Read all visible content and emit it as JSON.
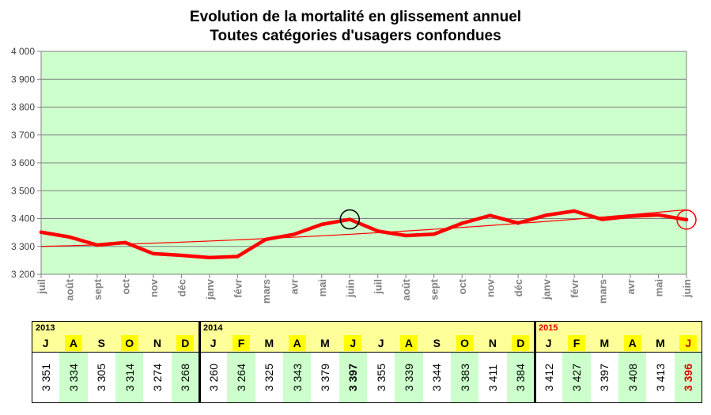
{
  "title_lines": [
    "Evolution de la mortalité en glissement annuel",
    "Toutes catégories d'usagers confondues"
  ],
  "chart_data": {
    "type": "line",
    "title": "Evolution de la mortalité en glissement annuel — Toutes catégories d'usagers confondues",
    "categories": [
      "juil",
      "août",
      "sept",
      "oct",
      "nov",
      "déc",
      "janv",
      "févr",
      "mars",
      "avr",
      "mai",
      "juin",
      "juil",
      "août",
      "sept",
      "oct",
      "nov",
      "déc",
      "janv",
      "févr",
      "mars",
      "avr",
      "mai",
      "juin"
    ],
    "series": [
      {
        "values": [
          3351,
          3334,
          3305,
          3314,
          3274,
          3268,
          3260,
          3264,
          3325,
          3343,
          3379,
          3397,
          3355,
          3339,
          3344,
          3383,
          3411,
          3384,
          3412,
          3427,
          3397,
          3408,
          3413,
          3396
        ],
        "color": "#ff0000"
      }
    ],
    "trendline": true,
    "ylim": [
      3200,
      4000
    ],
    "yticks": [
      3200,
      3300,
      3400,
      3500,
      3600,
      3700,
      3800,
      3900,
      4000
    ],
    "ytick_labels": [
      "3 200",
      "3 300",
      "3 400",
      "3 500",
      "3 600",
      "3 700",
      "3 800",
      "3 900",
      "4 000"
    ],
    "grid": true,
    "plot_background": "#ccffcc",
    "highlighted_points": [
      {
        "index": 11,
        "circle_color": "#000000"
      },
      {
        "index": 23,
        "circle_color": "#ff0000"
      }
    ]
  },
  "table": {
    "years": [
      {
        "year": "2013",
        "color": "#000000",
        "months": [
          {
            "letter": "J",
            "value": "3 351",
            "hl": false
          },
          {
            "letter": "A",
            "value": "3 334",
            "hl": true
          },
          {
            "letter": "S",
            "value": "3 305",
            "hl": false
          },
          {
            "letter": "O",
            "value": "3 314",
            "hl": true
          },
          {
            "letter": "N",
            "value": "3 274",
            "hl": false
          },
          {
            "letter": "D",
            "value": "3 268",
            "hl": true
          }
        ]
      },
      {
        "year": "2014",
        "color": "#000000",
        "months": [
          {
            "letter": "J",
            "value": "3 260",
            "hl": false
          },
          {
            "letter": "F",
            "value": "3 264",
            "hl": true
          },
          {
            "letter": "M",
            "value": "3 325",
            "hl": false
          },
          {
            "letter": "A",
            "value": "3 343",
            "hl": true
          },
          {
            "letter": "M",
            "value": "3 379",
            "hl": false
          },
          {
            "letter": "J",
            "value": "3 397",
            "hl": true,
            "bold": true
          },
          {
            "letter": "J",
            "value": "3 355",
            "hl": false
          },
          {
            "letter": "A",
            "value": "3 339",
            "hl": true
          },
          {
            "letter": "S",
            "value": "3 344",
            "hl": false
          },
          {
            "letter": "O",
            "value": "3 383",
            "hl": true
          },
          {
            "letter": "N",
            "value": "3 411",
            "hl": false
          },
          {
            "letter": "D",
            "value": "3 384",
            "hl": true
          }
        ]
      },
      {
        "year": "2015",
        "color": "#e00000",
        "months": [
          {
            "letter": "J",
            "value": "3 412",
            "hl": false
          },
          {
            "letter": "F",
            "value": "3 427",
            "hl": true
          },
          {
            "letter": "M",
            "value": "3 397",
            "hl": false
          },
          {
            "letter": "A",
            "value": "3 408",
            "hl": true
          },
          {
            "letter": "M",
            "value": "3 413",
            "hl": false
          },
          {
            "letter": "J",
            "value": "3 396",
            "hl": true,
            "red": true
          }
        ]
      }
    ]
  }
}
